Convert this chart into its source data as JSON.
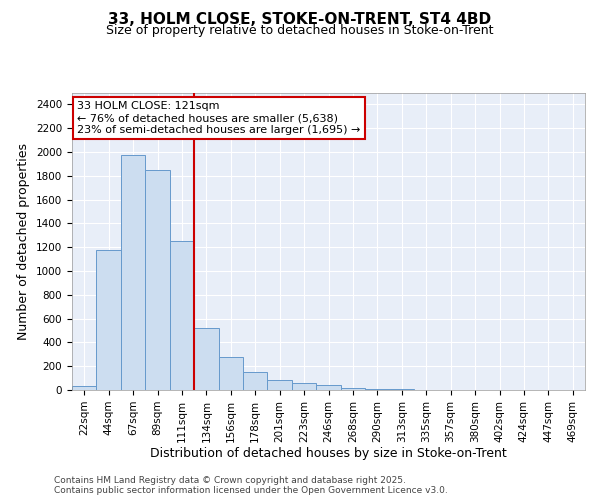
{
  "title1": "33, HOLM CLOSE, STOKE-ON-TRENT, ST4 4BD",
  "title2": "Size of property relative to detached houses in Stoke-on-Trent",
  "xlabel": "Distribution of detached houses by size in Stoke-on-Trent",
  "ylabel": "Number of detached properties",
  "categories": [
    "22sqm",
    "44sqm",
    "67sqm",
    "89sqm",
    "111sqm",
    "134sqm",
    "156sqm",
    "178sqm",
    "201sqm",
    "223sqm",
    "246sqm",
    "268sqm",
    "290sqm",
    "313sqm",
    "335sqm",
    "357sqm",
    "380sqm",
    "402sqm",
    "424sqm",
    "447sqm",
    "469sqm"
  ],
  "values": [
    30,
    1175,
    1975,
    1850,
    1250,
    520,
    275,
    155,
    85,
    55,
    40,
    20,
    10,
    5,
    2,
    2,
    1,
    1,
    0,
    0,
    0
  ],
  "bar_color": "#ccddf0",
  "bar_edge_color": "#6699cc",
  "background_color": "#e8eef8",
  "grid_color": "#ffffff",
  "ylim": [
    0,
    2500
  ],
  "yticks": [
    0,
    200,
    400,
    600,
    800,
    1000,
    1200,
    1400,
    1600,
    1800,
    2000,
    2200,
    2400
  ],
  "annotation_text": "33 HOLM CLOSE: 121sqm\n← 76% of detached houses are smaller (5,638)\n23% of semi-detached houses are larger (1,695) →",
  "annotation_box_color": "#ffffff",
  "annotation_box_edge": "#cc0000",
  "footer1": "Contains HM Land Registry data © Crown copyright and database right 2025.",
  "footer2": "Contains public sector information licensed under the Open Government Licence v3.0.",
  "title1_fontsize": 11,
  "title2_fontsize": 9,
  "tick_fontsize": 7.5,
  "label_fontsize": 9
}
